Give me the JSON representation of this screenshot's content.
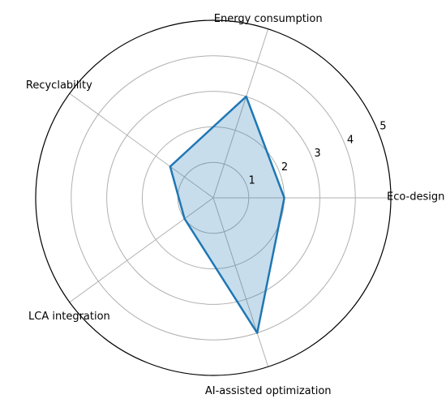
{
  "chart_data": {
    "type": "radar",
    "categories": [
      "Eco-design",
      "Energy consumption",
      "Recyclability",
      "LCA integration",
      "AI-assisted optimization"
    ],
    "series": [
      {
        "values": [
          2,
          3,
          1.5,
          1,
          4
        ]
      }
    ],
    "rlim": [
      0,
      5
    ],
    "rticks": [
      "1",
      "2",
      "3",
      "4",
      "5"
    ],
    "grid": true,
    "colors": {
      "line": "#1f77b4",
      "fill": "#1f77b4",
      "fill_opacity": 0.25,
      "grid": "#b0b0b0"
    }
  }
}
